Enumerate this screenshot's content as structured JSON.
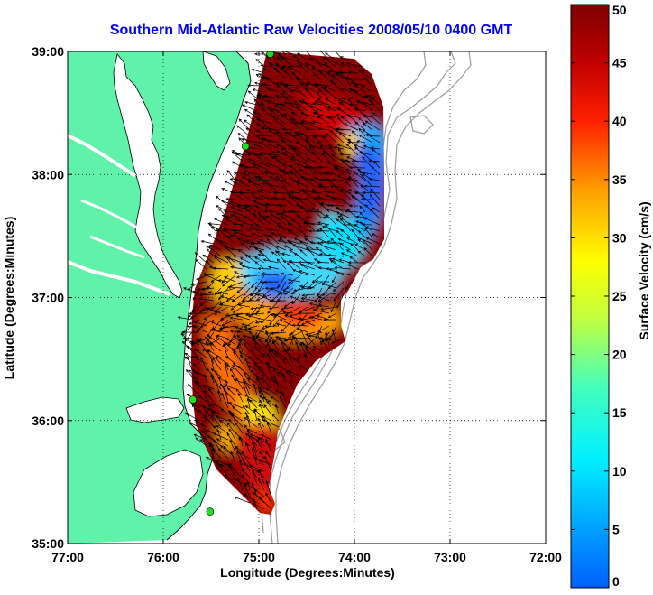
{
  "title": "Southern Mid-Atlantic Raw Velocities 2008/05/10 0400 GMT",
  "colors": {
    "title": "#0000ff",
    "land": "#5ff2a8",
    "coast_line": "#000000",
    "bathymetry": "#9a9a9a",
    "station": "#22dd22",
    "grid": "#000000",
    "arrow": "#000000"
  },
  "map": {
    "xlabel": "Longitude (Degrees:Minutes)",
    "ylabel": "Latitude (Degrees:Minutes)",
    "lon_range": [
      -77,
      -72
    ],
    "lat_range": [
      35,
      39
    ],
    "x_ticks": [
      {
        "value": -77,
        "label": "77:00"
      },
      {
        "value": -76,
        "label": "76:00"
      },
      {
        "value": -75,
        "label": "75:00"
      },
      {
        "value": -74,
        "label": "74:00"
      },
      {
        "value": -73,
        "label": "73:00"
      },
      {
        "value": -72,
        "label": "72:00"
      }
    ],
    "y_ticks": [
      {
        "value": 35,
        "label": "35:00"
      },
      {
        "value": 36,
        "label": "36:00"
      },
      {
        "value": 37,
        "label": "37:00"
      },
      {
        "value": 38,
        "label": "38:00"
      },
      {
        "value": 39,
        "label": "39:00"
      }
    ],
    "grid": "dotted",
    "stations": [
      {
        "lon": -74.88,
        "lat": 38.98
      },
      {
        "lon": -75.14,
        "lat": 38.23
      },
      {
        "lon": -75.69,
        "lat": 36.17
      },
      {
        "lon": -75.51,
        "lat": 35.26
      }
    ]
  },
  "colorbar": {
    "label": "Surface Velocity (cm/s)",
    "range": [
      0,
      50
    ],
    "ticks": [
      {
        "value": 0,
        "label": "0"
      },
      {
        "value": 5,
        "label": "5"
      },
      {
        "value": 10,
        "label": "10"
      },
      {
        "value": 15,
        "label": "15"
      },
      {
        "value": 20,
        "label": "20"
      },
      {
        "value": 25,
        "label": "25"
      },
      {
        "value": 30,
        "label": "30"
      },
      {
        "value": 35,
        "label": "35"
      },
      {
        "value": 40,
        "label": "40"
      },
      {
        "value": 45,
        "label": "45"
      },
      {
        "value": 50,
        "label": "50"
      }
    ],
    "colormap": "jet"
  }
}
